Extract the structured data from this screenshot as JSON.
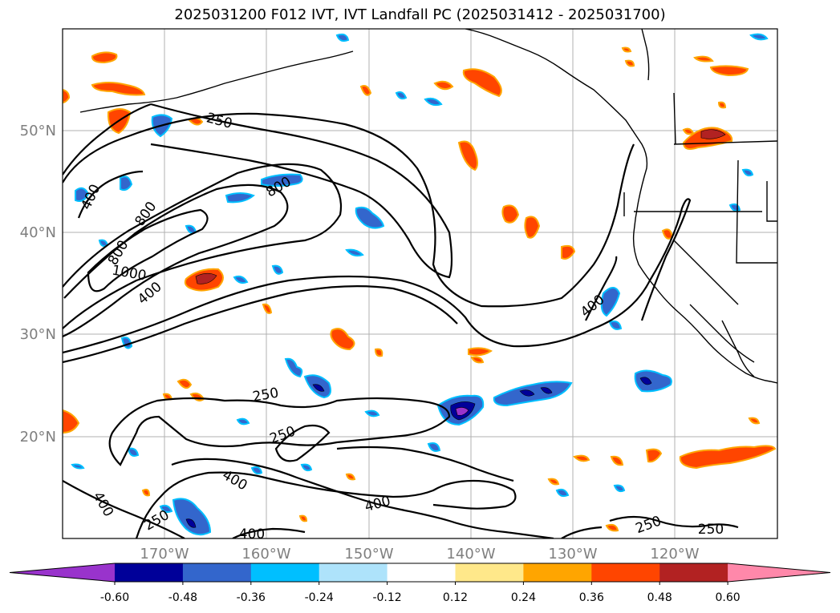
{
  "title": "2025031200 F012 IVT, IVT Landfall PC (2025031412 - 2025031700)",
  "map": {
    "lat_ticks": [
      "50°N",
      "40°N",
      "30°N",
      "20°N"
    ],
    "lon_ticks": [
      "170°W",
      "160°W",
      "150°W",
      "140°W",
      "130°W",
      "120°W"
    ],
    "grid": true,
    "contour_labels": [
      "250",
      "400",
      "800",
      "1000",
      "800",
      "800",
      "400",
      "400",
      "250",
      "250",
      "400",
      "400",
      "250",
      "400",
      "250",
      "250",
      "400"
    ]
  },
  "colorbar": {
    "tick_labels": [
      "-0.60",
      "-0.48",
      "-0.36",
      "-0.24",
      "-0.12",
      "0.12",
      "0.24",
      "0.36",
      "0.48",
      "0.60"
    ],
    "colors": [
      "#9933cc",
      "#000099",
      "#3366cc",
      "#00bfff",
      "#aee3fb",
      "#ffffff",
      "#ffe88a",
      "#ffa500",
      "#ff4500",
      "#b22222",
      "#ff88aa"
    ]
  },
  "colors": {
    "positive_low": "#ffe88a",
    "positive_mid": "#ffa500",
    "positive_high": "#ff4500",
    "positive_max": "#b22222",
    "negative_low": "#aee3fb",
    "negative_mid": "#00bfff",
    "negative_high": "#3366cc",
    "negative_max": "#000099",
    "negative_extreme": "#9933cc",
    "contour": "#000000",
    "gridline": "#b0b0b0"
  }
}
